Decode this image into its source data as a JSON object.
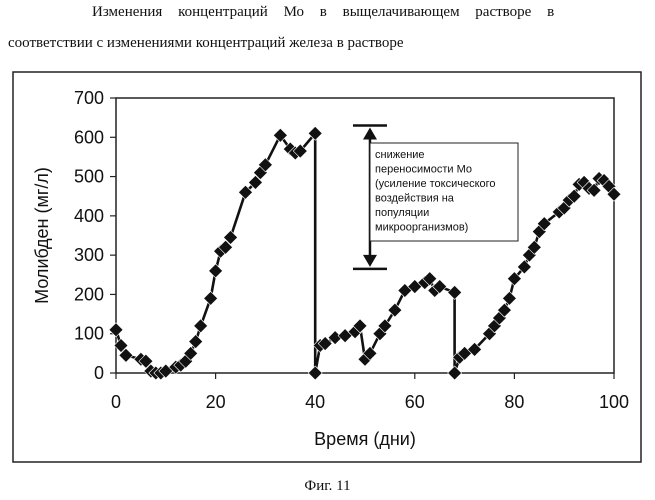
{
  "caption": {
    "line1": "Изменения концентраций Мо в выщелачивающем растворе в",
    "line2": "соответствии с изменениями концентраций железа в растворе"
  },
  "figure_label": "Фиг. 11",
  "colors": {
    "line": "#111111",
    "marker": "#111111",
    "frame": "#222222"
  },
  "chart_data": {
    "type": "line",
    "title": "",
    "xlabel": "Время (дни)",
    "ylabel": "Молибден (мг/л)",
    "xlim": [
      0,
      100
    ],
    "ylim": [
      0,
      700
    ],
    "xticks": [
      0,
      20,
      40,
      60,
      80,
      100
    ],
    "yticks": [
      0,
      100,
      200,
      300,
      400,
      500,
      600,
      700
    ],
    "grid": false,
    "legend": "none",
    "series": [
      {
        "name": "Молибден",
        "marker": "diamond",
        "x": [
          0,
          1,
          2,
          5,
          6,
          7,
          8,
          9,
          10,
          12,
          13,
          14,
          15,
          16,
          17,
          19,
          20,
          21,
          22,
          23,
          26,
          28,
          29,
          30,
          33,
          35,
          36,
          37,
          40,
          40,
          41,
          42,
          44,
          46,
          48,
          49,
          50,
          51,
          53,
          54,
          56,
          58,
          60,
          62,
          63,
          64,
          65,
          68,
          68,
          69,
          70,
          72,
          75,
          76,
          77,
          78,
          79,
          80,
          82,
          83,
          84,
          85,
          86,
          89,
          90,
          91,
          92,
          93,
          94,
          95,
          96,
          97,
          98,
          99,
          100
        ],
        "y": [
          110,
          70,
          45,
          35,
          30,
          5,
          0,
          0,
          5,
          15,
          20,
          30,
          50,
          80,
          120,
          190,
          260,
          310,
          320,
          345,
          460,
          485,
          510,
          530,
          605,
          570,
          560,
          565,
          610,
          0,
          70,
          75,
          90,
          95,
          105,
          120,
          35,
          50,
          100,
          120,
          160,
          210,
          220,
          230,
          240,
          210,
          220,
          205,
          0,
          40,
          50,
          60,
          100,
          120,
          140,
          160,
          190,
          240,
          270,
          300,
          320,
          360,
          380,
          410,
          420,
          440,
          450,
          480,
          485,
          470,
          465,
          495,
          490,
          475,
          455
        ],
        "note": "vertical drops at day 40 and day 68 (concentration reset)"
      }
    ],
    "annotation": {
      "lines": [
        "снижение",
        "переносимости Мо",
        "(усиление токсического",
        "воздействия на",
        "популяции",
        "микроорганизмов)"
      ],
      "arrow_from_value": 630,
      "arrow_to_value": 265,
      "arrow_at_x": 51
    }
  }
}
